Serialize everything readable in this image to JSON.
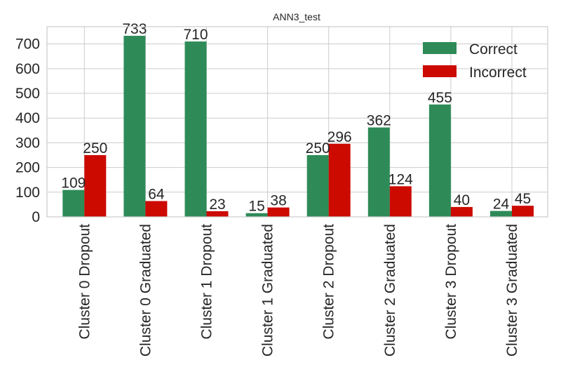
{
  "chart_data": {
    "type": "bar",
    "title": "ANN3_test",
    "xlabel": "",
    "ylabel": "",
    "categories": [
      "Cluster 0 Dropout",
      "Cluster 0 Graduated",
      "Cluster 1 Dropout",
      "Cluster 1 Graduated",
      "Cluster 2 Dropout",
      "Cluster 2 Graduated",
      "Cluster 3 Dropout",
      "Cluster 3 Graduated"
    ],
    "series": [
      {
        "name": "Correct",
        "color": "#2e8b57",
        "values": [
          109,
          733,
          710,
          15,
          250,
          362,
          455,
          24
        ]
      },
      {
        "name": "Incorrect",
        "color": "#cc0a00",
        "values": [
          250,
          64,
          23,
          38,
          296,
          124,
          40,
          45
        ]
      }
    ],
    "ylim": [
      0,
      770
    ],
    "yticks": [
      0,
      100,
      200,
      300,
      400,
      500,
      600,
      700
    ],
    "grid": true,
    "legend_position": "top-right"
  }
}
